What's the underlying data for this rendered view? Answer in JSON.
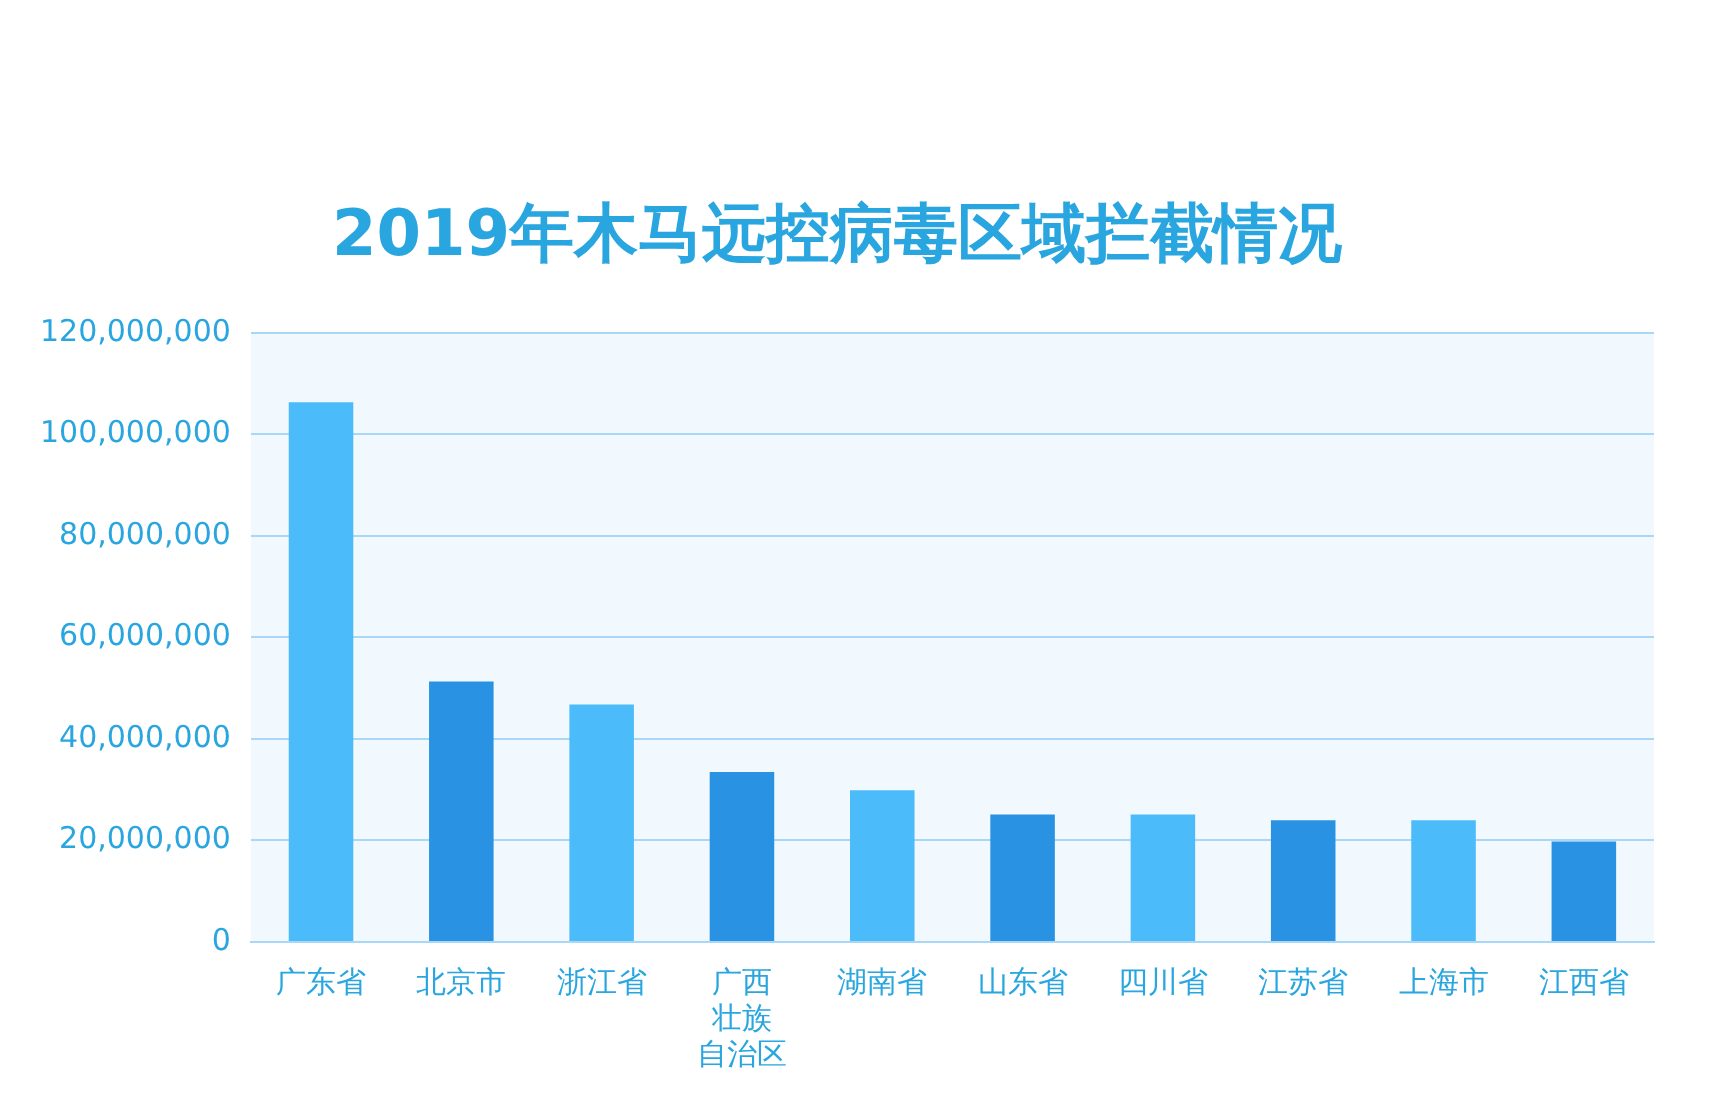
{
  "chart_data": {
    "type": "bar",
    "title": "2019年木马远控病毒区域拦截情况",
    "categories": [
      "广东省",
      "北京市",
      "浙江省",
      "广西壮族自治区",
      "湖南省",
      "山东省",
      "四川省",
      "江苏省",
      "上海市",
      "江西省"
    ],
    "values": [
      106300000,
      51300000,
      46800000,
      33500000,
      29900000,
      25100000,
      25100000,
      24000000,
      24000000,
      19800000
    ],
    "colors": [
      "#4bbcf9",
      "#2a92e2",
      "#4bbcf9",
      "#2a92e2",
      "#4bbcf9",
      "#2a92e2",
      "#4bbcf9",
      "#2a92e2",
      "#4bbcf9",
      "#2a92e2"
    ],
    "ylim": [
      0,
      120000000
    ],
    "yticks": [
      0,
      {
        "value": 20000000,
        "label": "20,000,000"
      },
      {
        "value": 40000000,
        "label": "40,000,000"
      },
      {
        "value": 60000000,
        "label": "60,000,000"
      },
      {
        "value": 80000000,
        "label": "80,000,000"
      },
      {
        "value": 100000000,
        "label": "100,000,000"
      },
      {
        "value": 120000000,
        "label": "120,000,000"
      }
    ],
    "grid": "y",
    "legend": false
  }
}
